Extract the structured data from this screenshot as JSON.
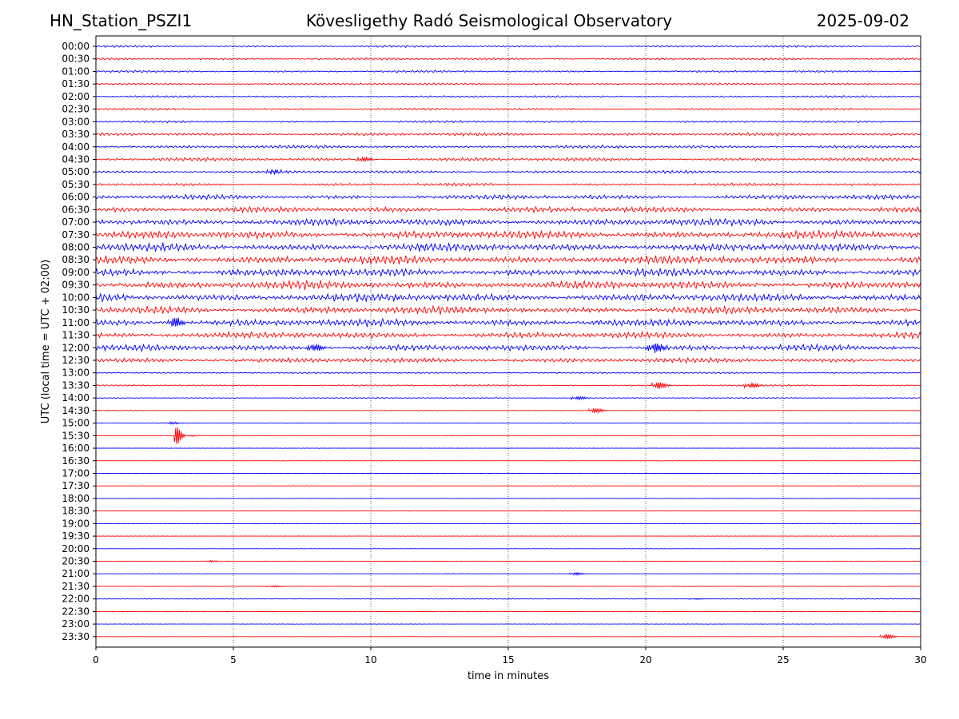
{
  "header": {
    "left": "HN_Station_PSZI1",
    "center": "Kövesligethy Radó Seismological Observatory",
    "right": "2025-09-02"
  },
  "chart_data": {
    "type": "line",
    "subtype": "helicorder",
    "title": "Kövesligethy Radó Seismological Observatory",
    "station": "HN_Station_PSZI1",
    "date": "2025-09-02",
    "xlabel": "time in minutes",
    "ylabel": "UTC (local time = UTC + 02:00)",
    "xlim": [
      0,
      30
    ],
    "xticks": [
      0,
      5,
      10,
      15,
      20,
      25,
      30
    ],
    "xtick_labels": [
      "0",
      "5",
      "10",
      "15",
      "20",
      "25",
      "30"
    ],
    "grid": "vertical dotted",
    "colors": {
      "even_rows": "#0000ff",
      "odd_rows": "#ff0000",
      "grid": "#000000"
    },
    "rows": [
      "00:00",
      "00:30",
      "01:00",
      "01:30",
      "02:00",
      "02:30",
      "03:00",
      "03:30",
      "04:00",
      "04:30",
      "05:00",
      "05:30",
      "06:00",
      "06:30",
      "07:00",
      "07:30",
      "08:00",
      "08:30",
      "09:00",
      "09:30",
      "10:00",
      "10:30",
      "11:00",
      "11:30",
      "12:00",
      "12:30",
      "13:00",
      "13:30",
      "14:00",
      "14:30",
      "15:00",
      "15:30",
      "16:00",
      "16:30",
      "17:00",
      "17:30",
      "18:00",
      "18:30",
      "19:00",
      "19:30",
      "20:00",
      "20:30",
      "21:00",
      "21:30",
      "22:00",
      "22:30",
      "23:00",
      "23:30"
    ],
    "amplitude_level": [
      0.26,
      0.3,
      0.26,
      0.26,
      0.24,
      0.26,
      0.26,
      0.4,
      0.4,
      0.42,
      0.36,
      0.36,
      0.6,
      0.72,
      0.9,
      1.0,
      1.0,
      1.05,
      1.0,
      1.05,
      1.0,
      0.95,
      0.9,
      0.8,
      0.75,
      0.62,
      0.2,
      0.2,
      0.14,
      0.1,
      0.1,
      0.07,
      0.05,
      0.05,
      0.05,
      0.05,
      0.05,
      0.05,
      0.06,
      0.05,
      0.05,
      0.07,
      0.07,
      0.07,
      0.07,
      0.05,
      0.05,
      0.05
    ],
    "events": [
      {
        "row": "04:30",
        "minute": 9.6,
        "amp": 0.8
      },
      {
        "row": "05:00",
        "minute": 6.3,
        "amp": 0.7
      },
      {
        "row": "11:00",
        "minute": 2.7,
        "amp": 2.0
      },
      {
        "row": "12:00",
        "minute": 7.8,
        "amp": 1.4
      },
      {
        "row": "12:00",
        "minute": 20.2,
        "amp": 1.8
      },
      {
        "row": "13:30",
        "minute": 20.3,
        "amp": 1.4
      },
      {
        "row": "13:30",
        "minute": 23.7,
        "amp": 1.0
      },
      {
        "row": "14:00",
        "minute": 17.4,
        "amp": 0.6
      },
      {
        "row": "14:30",
        "minute": 18.0,
        "amp": 0.9
      },
      {
        "row": "15:00",
        "minute": 2.6,
        "amp": 0.4
      },
      {
        "row": "15:30",
        "minute": 2.95,
        "amp": 1.3
      },
      {
        "row": "20:30",
        "minute": 4.0,
        "amp": 0.35
      },
      {
        "row": "21:00",
        "minute": 17.3,
        "amp": 0.5
      },
      {
        "row": "21:30",
        "minute": 6.3,
        "amp": 0.3
      },
      {
        "row": "22:00",
        "minute": 21.7,
        "amp": 0.25
      },
      {
        "row": "23:30",
        "minute": 28.6,
        "amp": 0.8
      }
    ]
  }
}
